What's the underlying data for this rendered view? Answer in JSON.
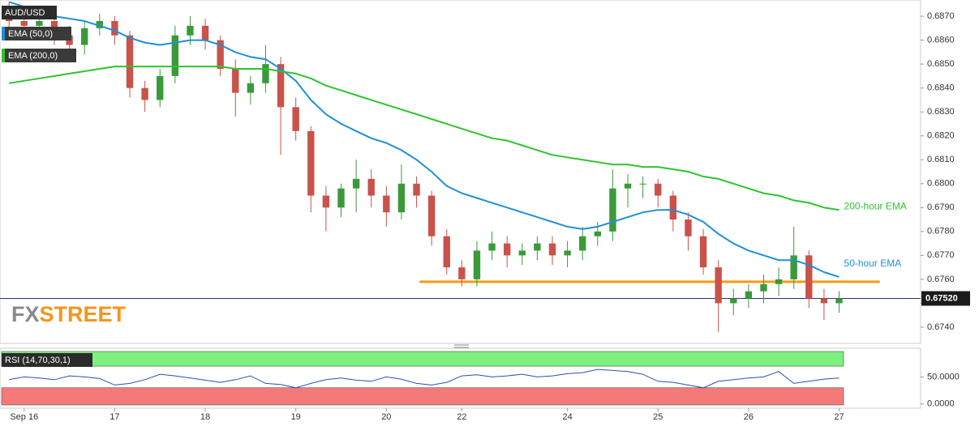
{
  "chart_data": {
    "type": "candlestick",
    "title": "AUD/USD",
    "x": [
      -1,
      0,
      1,
      2,
      3,
      4,
      5,
      6,
      7,
      8,
      9,
      10,
      11,
      12,
      13,
      14,
      15,
      16,
      17,
      18,
      19,
      20,
      21,
      22,
      23,
      24,
      25,
      26,
      27,
      28,
      29,
      30,
      31,
      32,
      33,
      34,
      35,
      36,
      37,
      38,
      39,
      40,
      41,
      42,
      43,
      44,
      45,
      46,
      47,
      48,
      49,
      50,
      51,
      52,
      53,
      54
    ],
    "open": [
      0.6872,
      0.6868,
      0.6866,
      0.6868,
      0.6862,
      0.6858,
      0.6865,
      0.6868,
      0.6862,
      0.684,
      0.6835,
      0.6845,
      0.6862,
      0.6866,
      0.686,
      0.6848,
      0.6838,
      0.6842,
      0.685,
      0.6832,
      0.6822,
      0.6795,
      0.679,
      0.6798,
      0.6802,
      0.6795,
      0.6788,
      0.68,
      0.6795,
      0.6778,
      0.6765,
      0.676,
      0.6772,
      0.6775,
      0.677,
      0.6772,
      0.6775,
      0.677,
      0.6772,
      0.6778,
      0.678,
      0.6798,
      0.68,
      0.68,
      0.6795,
      0.6785,
      0.6778,
      0.6765,
      0.675,
      0.6752,
      0.6755,
      0.6758,
      0.676,
      0.677,
      0.6752,
      0.675
    ],
    "high": [
      0.6876,
      0.6874,
      0.6872,
      0.6871,
      0.6866,
      0.6868,
      0.6871,
      0.687,
      0.6864,
      0.6843,
      0.6848,
      0.6866,
      0.687,
      0.6869,
      0.6862,
      0.6852,
      0.6845,
      0.6858,
      0.6853,
      0.6836,
      0.6824,
      0.6799,
      0.68,
      0.681,
      0.6806,
      0.6799,
      0.6808,
      0.6803,
      0.6797,
      0.6781,
      0.6768,
      0.6776,
      0.678,
      0.6778,
      0.6775,
      0.6778,
      0.6778,
      0.6776,
      0.6782,
      0.6784,
      0.6806,
      0.6804,
      0.6803,
      0.6802,
      0.6797,
      0.6788,
      0.6781,
      0.6768,
      0.6756,
      0.6758,
      0.6762,
      0.6765,
      0.6782,
      0.6772,
      0.6756,
      0.6755
    ],
    "low": [
      0.6864,
      0.6863,
      0.6862,
      0.6858,
      0.6855,
      0.6854,
      0.6862,
      0.6858,
      0.6836,
      0.683,
      0.6832,
      0.6842,
      0.6858,
      0.6856,
      0.6845,
      0.6828,
      0.6833,
      0.6838,
      0.6812,
      0.6818,
      0.6788,
      0.678,
      0.6786,
      0.6788,
      0.679,
      0.6782,
      0.6785,
      0.679,
      0.6774,
      0.6762,
      0.6757,
      0.6757,
      0.6768,
      0.6765,
      0.6766,
      0.6768,
      0.6766,
      0.6765,
      0.6768,
      0.6774,
      0.6776,
      0.679,
      0.6794,
      0.679,
      0.678,
      0.6772,
      0.6762,
      0.6738,
      0.6745,
      0.6748,
      0.675,
      0.6753,
      0.6756,
      0.6748,
      0.6743,
      0.6746
    ],
    "close": [
      0.6868,
      0.6866,
      0.6868,
      0.6862,
      0.6858,
      0.6865,
      0.6868,
      0.6862,
      0.684,
      0.6835,
      0.6845,
      0.6862,
      0.6866,
      0.686,
      0.6848,
      0.6838,
      0.6842,
      0.685,
      0.6832,
      0.6822,
      0.6795,
      0.679,
      0.6798,
      0.6802,
      0.6795,
      0.6788,
      0.68,
      0.6795,
      0.6778,
      0.6765,
      0.676,
      0.6772,
      0.6775,
      0.677,
      0.6772,
      0.6775,
      0.677,
      0.6772,
      0.6778,
      0.678,
      0.6798,
      0.68,
      0.68,
      0.6795,
      0.6785,
      0.6778,
      0.6765,
      0.675,
      0.6752,
      0.6755,
      0.6758,
      0.676,
      0.677,
      0.6752,
      0.675,
      0.6752
    ],
    "up_color": "#3a9a3a",
    "down_color": "#c9524a",
    "series": [
      {
        "name": "EMA (50,0)",
        "label": "50-hour EMA",
        "color": "#1e90d8",
        "values": [
          0.6876,
          0.6874,
          0.6872,
          0.687,
          0.6869,
          0.6868,
          0.6866,
          0.6864,
          0.6861,
          0.6859,
          0.6858,
          0.6859,
          0.686,
          0.686,
          0.6858,
          0.6855,
          0.6853,
          0.6852,
          0.6848,
          0.6843,
          0.6835,
          0.6829,
          0.6825,
          0.6822,
          0.6819,
          0.6817,
          0.6814,
          0.681,
          0.6805,
          0.6799,
          0.6796,
          0.6794,
          0.6792,
          0.679,
          0.6788,
          0.6786,
          0.6784,
          0.6782,
          0.6781,
          0.6782,
          0.6784,
          0.6786,
          0.6788,
          0.6789,
          0.6789,
          0.6787,
          0.6784,
          0.6779,
          0.6775,
          0.6772,
          0.677,
          0.6768,
          0.6768,
          0.6766,
          0.6763,
          0.6761
        ]
      },
      {
        "name": "EMA (200,0)",
        "label": "200-hour EMA",
        "color": "#2ec42e",
        "values": [
          0.6842,
          0.6843,
          0.6844,
          0.6845,
          0.6846,
          0.6847,
          0.6848,
          0.6849,
          0.6849,
          0.6849,
          0.6849,
          0.6849,
          0.6849,
          0.6849,
          0.6849,
          0.6848,
          0.6848,
          0.6848,
          0.6847,
          0.6846,
          0.6844,
          0.6841,
          0.6839,
          0.6837,
          0.6835,
          0.6833,
          0.6831,
          0.6829,
          0.6827,
          0.6825,
          0.6823,
          0.6821,
          0.6819,
          0.6818,
          0.6816,
          0.6814,
          0.6812,
          0.6811,
          0.681,
          0.6809,
          0.6808,
          0.6808,
          0.6807,
          0.6807,
          0.6806,
          0.6805,
          0.6803,
          0.6802,
          0.68,
          0.6798,
          0.6796,
          0.6795,
          0.6793,
          0.6792,
          0.679,
          0.6789
        ]
      }
    ],
    "support": {
      "value": 0.6759,
      "x": [
        26.2,
        56.7
      ],
      "color": "#f39c12"
    },
    "last_price": {
      "value": 0.6752,
      "label": "0.67520"
    },
    "xlim": [
      -1.6,
      59.4
    ],
    "xticks": [
      {
        "value": 0,
        "label": "Sep 16"
      },
      {
        "value": 6,
        "label": "17"
      },
      {
        "value": 12,
        "label": "18"
      },
      {
        "value": 18,
        "label": "19"
      },
      {
        "value": 24,
        "label": "20"
      },
      {
        "value": 29,
        "label": "22"
      },
      {
        "value": 36,
        "label": "24"
      },
      {
        "value": 42,
        "label": "25"
      },
      {
        "value": 48,
        "label": "26"
      },
      {
        "value": 54,
        "label": "27"
      }
    ],
    "ylim": [
      0.67332,
      0.68768
    ],
    "yticks": [
      {
        "value": 0.674,
        "label": "0.6740"
      },
      {
        "value": 0.675,
        "label": "0.6750"
      },
      {
        "value": 0.676,
        "label": "0.6760"
      },
      {
        "value": 0.677,
        "label": "0.6770"
      },
      {
        "value": 0.678,
        "label": "0.6780"
      },
      {
        "value": 0.679,
        "label": "0.6790"
      },
      {
        "value": 0.68,
        "label": "0.6800"
      },
      {
        "value": 0.681,
        "label": "0.6810"
      },
      {
        "value": 0.682,
        "label": "0.6820"
      },
      {
        "value": 0.683,
        "label": "0.6830"
      },
      {
        "value": 0.684,
        "label": "0.6840"
      },
      {
        "value": 0.685,
        "label": "0.6850"
      },
      {
        "value": 0.686,
        "label": "0.6860"
      },
      {
        "value": 0.687,
        "label": "0.6870"
      }
    ],
    "brand": [
      "FX",
      "STREET"
    ],
    "rsi": {
      "title": "RSI (14,70,30,1)",
      "color": "#2c4fb0",
      "overbought": 70,
      "overbought_color": "#7df07d",
      "oversold": 30,
      "oversold_color": "#f47a7a",
      "values": [
        45,
        50,
        48,
        45,
        52,
        50,
        47,
        35,
        38,
        45,
        55,
        52,
        48,
        44,
        40,
        45,
        52,
        38,
        36,
        30,
        38,
        45,
        48,
        44,
        42,
        50,
        46,
        38,
        35,
        40,
        52,
        54,
        50,
        52,
        55,
        50,
        52,
        56,
        58,
        64,
        62,
        60,
        55,
        42,
        40,
        35,
        30,
        42,
        45,
        48,
        50,
        60,
        38,
        42,
        46,
        48
      ],
      "ylim": [
        -7.8,
        103.1
      ],
      "yticks": [
        {
          "value": 50,
          "label": "50.0000"
        },
        {
          "value": 0,
          "label": "0.0000"
        }
      ]
    }
  }
}
